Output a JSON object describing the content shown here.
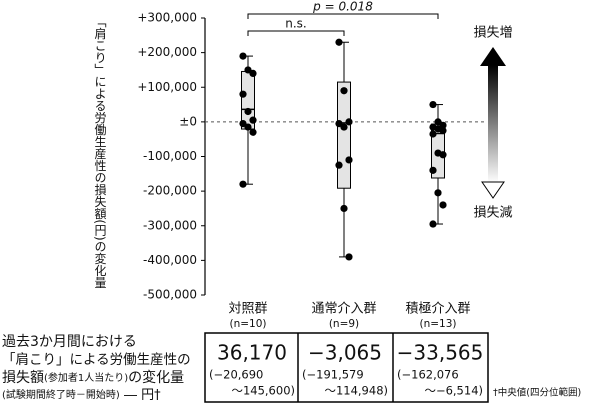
{
  "chart_data": {
    "type": "box",
    "y_label": "「肩こり」による労働生産性の損失額(円)の変化量",
    "ylim": [
      -500000,
      300000
    ],
    "yticks": [
      {
        "value": 300000,
        "label": "+300,000"
      },
      {
        "value": 200000,
        "label": "+200,000"
      },
      {
        "value": 100000,
        "label": "+100,000"
      },
      {
        "value": 0,
        "label": "±0"
      },
      {
        "value": -100000,
        "label": "-100,000"
      },
      {
        "value": -200000,
        "label": "-200,000"
      },
      {
        "value": -300000,
        "label": "-300,000"
      },
      {
        "value": -400000,
        "label": "-400,000"
      },
      {
        "value": -500000,
        "label": "-500,000"
      }
    ],
    "annotations": [
      "p = 0.018",
      "n.s."
    ],
    "arrow_labels": [
      "損失増",
      "損失減"
    ],
    "groups": [
      {
        "name": "対照群",
        "n_label": "(n=10)",
        "median": 36170,
        "median_label": "36,170",
        "q1": -20690,
        "q1_label": "(−20,690",
        "q3": 145600,
        "q3_label": "～145,600)",
        "min": -180000,
        "max": 190000,
        "points": [
          190000,
          150000,
          140000,
          80000,
          30000,
          5000,
          -5000,
          -15000,
          -30000,
          -180000
        ]
      },
      {
        "name": "通常介入群",
        "n_label": "(n=9)",
        "median": -3065,
        "median_label": "−3,065",
        "q1": -191579,
        "q1_label": "(−191,579",
        "q3": 114948,
        "q3_label": "～114,948)",
        "min": -390000,
        "max": 230000,
        "points": [
          230000,
          90000,
          0,
          -5000,
          -15000,
          -110000,
          -125000,
          -250000,
          -390000
        ]
      },
      {
        "name": "積極介入群",
        "n_label": "(n=13)",
        "median": -33565,
        "median_label": "−33,565",
        "q1": -162076,
        "q1_label": "(−162,076",
        "q3": -6514,
        "q3_label": "～−6,514)",
        "min": -295000,
        "max": 50000,
        "points": [
          50000,
          0,
          -10000,
          -15000,
          -20000,
          -25000,
          -35000,
          -90000,
          -95000,
          -140000,
          -205000,
          -240000,
          -295000
        ]
      }
    ]
  },
  "table": {
    "description": [
      [
        "過去3か月間における"
      ],
      [
        "「肩こり」による労働生産性の"
      ],
      [
        "損失額",
        "(参加者1人当たり)",
        "の変化量"
      ],
      [
        "(試験期間終了時－開始時)",
        " ― 円†"
      ]
    ],
    "footnote": "†中央値(四分位範囲)"
  }
}
